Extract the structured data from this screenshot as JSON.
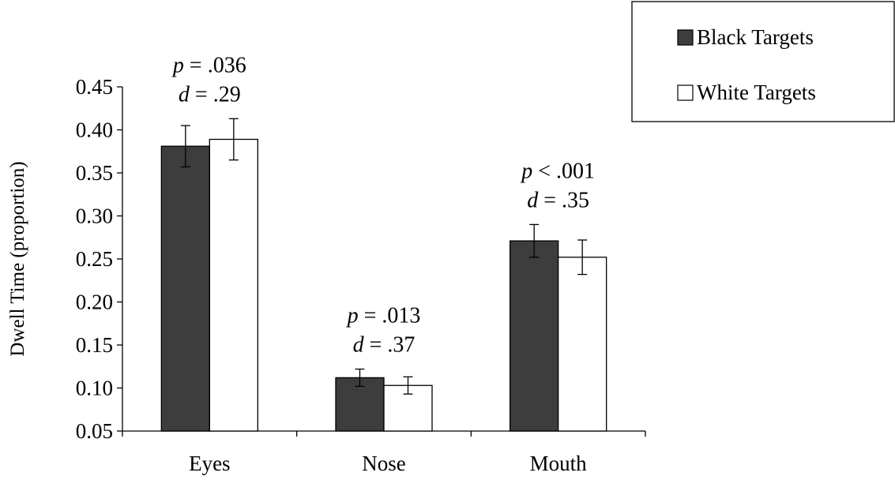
{
  "chart_data": {
    "type": "bar",
    "ylabel": "Dwell Time  (proportion)",
    "xlabel": "",
    "ylim": [
      0.05,
      0.45
    ],
    "yticks": [
      "0.05",
      "0.10",
      "0.15",
      "0.20",
      "0.25",
      "0.30",
      "0.35",
      "0.40",
      "0.45"
    ],
    "categories": [
      "Eyes",
      "Nose",
      "Mouth"
    ],
    "series": [
      {
        "name": "Black Targets",
        "color": "#3d3d3d",
        "values": [
          0.381,
          0.112,
          0.271
        ],
        "error": [
          0.024,
          0.01,
          0.019
        ]
      },
      {
        "name": "White Targets",
        "color": "#ffffff",
        "values": [
          0.389,
          0.103,
          0.252
        ],
        "error": [
          0.024,
          0.01,
          0.02
        ]
      }
    ],
    "annotations": [
      {
        "category": "Eyes",
        "p_symbol": "p",
        "p_text": " = .036",
        "d_symbol": "d",
        "d_text": " = .29"
      },
      {
        "category": "Nose",
        "p_symbol": "p",
        "p_text": " = .013",
        "d_symbol": "d",
        "d_text": " = .37"
      },
      {
        "category": "Mouth",
        "p_symbol": "p",
        "p_text": " < .001",
        "d_symbol": "d",
        "d_text": " = .35"
      }
    ],
    "legend": {
      "placement": "top-right",
      "entries": [
        "Black Targets",
        "White Targets"
      ]
    },
    "grid": false
  }
}
